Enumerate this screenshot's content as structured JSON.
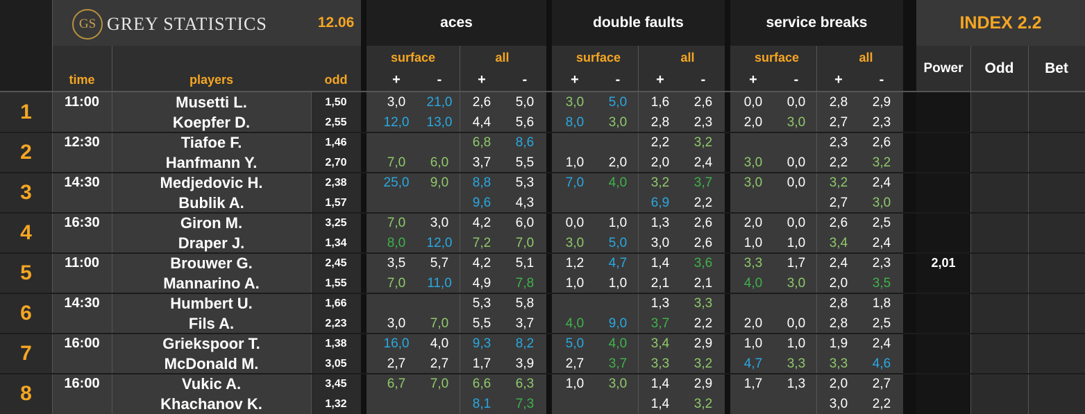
{
  "header": {
    "logo_mark": "GS",
    "brand": "GREY STATISTICS",
    "date": "12.06",
    "index": "INDEX 2.2",
    "groups": [
      "aces",
      "double faults",
      "service breaks"
    ],
    "sub_surface": "surface",
    "sub_all": "all",
    "plus": "+",
    "minus": "-",
    "col_time": "time",
    "col_players": "players",
    "col_odd": "odd",
    "col_power": "Power",
    "col_odd2": "Odd",
    "col_bet": "Bet"
  },
  "matches": [
    {
      "num": "1",
      "time": "11:00",
      "power": "",
      "players": [
        {
          "name": "Musetti L.",
          "odd": "1,50",
          "vals": [
            [
              "3,0",
              "w"
            ],
            [
              "21,0",
              "b"
            ],
            [
              "2,6",
              "w"
            ],
            [
              "5,0",
              "w"
            ],
            [
              "3,0",
              "g"
            ],
            [
              "5,0",
              "b"
            ],
            [
              "1,6",
              "w"
            ],
            [
              "2,6",
              "w"
            ],
            [
              "0,0",
              "w"
            ],
            [
              "0,0",
              "w"
            ],
            [
              "2,8",
              "w"
            ],
            [
              "2,9",
              "w"
            ]
          ]
        },
        {
          "name": "Koepfer D.",
          "odd": "2,55",
          "vals": [
            [
              "12,0",
              "b"
            ],
            [
              "13,0",
              "b"
            ],
            [
              "4,4",
              "w"
            ],
            [
              "5,6",
              "w"
            ],
            [
              "8,0",
              "b"
            ],
            [
              "3,0",
              "g"
            ],
            [
              "2,8",
              "w"
            ],
            [
              "2,3",
              "w"
            ],
            [
              "2,0",
              "w"
            ],
            [
              "3,0",
              "g"
            ],
            [
              "2,7",
              "w"
            ],
            [
              "2,3",
              "w"
            ]
          ]
        }
      ]
    },
    {
      "num": "2",
      "time": "12:30",
      "power": "",
      "players": [
        {
          "name": "Tiafoe F.",
          "odd": "1,46",
          "vals": [
            [
              "",
              ""
            ],
            [
              "",
              ""
            ],
            [
              "6,8",
              "g"
            ],
            [
              "8,6",
              "b"
            ],
            [
              "",
              ""
            ],
            [
              "",
              ""
            ],
            [
              "2,2",
              "w"
            ],
            [
              "3,2",
              "g"
            ],
            [
              "",
              ""
            ],
            [
              "",
              ""
            ],
            [
              "2,3",
              "w"
            ],
            [
              "2,6",
              "w"
            ]
          ]
        },
        {
          "name": "Hanfmann Y.",
          "odd": "2,70",
          "vals": [
            [
              "7,0",
              "g"
            ],
            [
              "6,0",
              "g"
            ],
            [
              "3,7",
              "w"
            ],
            [
              "5,5",
              "w"
            ],
            [
              "1,0",
              "w"
            ],
            [
              "2,0",
              "w"
            ],
            [
              "2,0",
              "w"
            ],
            [
              "2,4",
              "w"
            ],
            [
              "3,0",
              "g"
            ],
            [
              "0,0",
              "w"
            ],
            [
              "2,2",
              "w"
            ],
            [
              "3,2",
              "g"
            ]
          ]
        }
      ]
    },
    {
      "num": "3",
      "time": "14:30",
      "power": "",
      "players": [
        {
          "name": "Medjedovic H.",
          "odd": "2,38",
          "vals": [
            [
              "25,0",
              "b"
            ],
            [
              "9,0",
              "g"
            ],
            [
              "8,8",
              "b"
            ],
            [
              "5,3",
              "w"
            ],
            [
              "7,0",
              "b"
            ],
            [
              "4,0",
              "dg"
            ],
            [
              "3,2",
              "g"
            ],
            [
              "3,7",
              "dg"
            ],
            [
              "3,0",
              "g"
            ],
            [
              "0,0",
              "w"
            ],
            [
              "3,2",
              "g"
            ],
            [
              "2,4",
              "w"
            ]
          ]
        },
        {
          "name": "Bublik A.",
          "odd": "1,57",
          "vals": [
            [
              "",
              ""
            ],
            [
              "",
              ""
            ],
            [
              "9,6",
              "b"
            ],
            [
              "4,3",
              "w"
            ],
            [
              "",
              ""
            ],
            [
              "",
              ""
            ],
            [
              "6,9",
              "b"
            ],
            [
              "2,2",
              "w"
            ],
            [
              "",
              ""
            ],
            [
              "",
              ""
            ],
            [
              "2,7",
              "w"
            ],
            [
              "3,0",
              "g"
            ]
          ]
        }
      ]
    },
    {
      "num": "4",
      "time": "16:30",
      "power": "",
      "players": [
        {
          "name": "Giron M.",
          "odd": "3,25",
          "vals": [
            [
              "7,0",
              "g"
            ],
            [
              "3,0",
              "w"
            ],
            [
              "4,2",
              "w"
            ],
            [
              "6,0",
              "w"
            ],
            [
              "0,0",
              "w"
            ],
            [
              "1,0",
              "w"
            ],
            [
              "1,3",
              "w"
            ],
            [
              "2,6",
              "w"
            ],
            [
              "2,0",
              "w"
            ],
            [
              "0,0",
              "w"
            ],
            [
              "2,6",
              "w"
            ],
            [
              "2,5",
              "w"
            ]
          ]
        },
        {
          "name": "Draper J.",
          "odd": "1,34",
          "vals": [
            [
              "8,0",
              "dg"
            ],
            [
              "12,0",
              "b"
            ],
            [
              "7,2",
              "g"
            ],
            [
              "7,0",
              "g"
            ],
            [
              "3,0",
              "g"
            ],
            [
              "5,0",
              "b"
            ],
            [
              "3,0",
              "w"
            ],
            [
              "2,6",
              "w"
            ],
            [
              "1,0",
              "w"
            ],
            [
              "1,0",
              "w"
            ],
            [
              "3,4",
              "g"
            ],
            [
              "2,4",
              "w"
            ]
          ]
        }
      ]
    },
    {
      "num": "5",
      "time": "11:00",
      "power": "2,01",
      "players": [
        {
          "name": "Brouwer G.",
          "odd": "2,45",
          "vals": [
            [
              "3,5",
              "w"
            ],
            [
              "5,7",
              "w"
            ],
            [
              "4,2",
              "w"
            ],
            [
              "5,1",
              "w"
            ],
            [
              "1,2",
              "w"
            ],
            [
              "4,7",
              "b"
            ],
            [
              "1,4",
              "w"
            ],
            [
              "3,6",
              "dg"
            ],
            [
              "3,3",
              "g"
            ],
            [
              "1,7",
              "w"
            ],
            [
              "2,4",
              "w"
            ],
            [
              "2,3",
              "w"
            ]
          ]
        },
        {
          "name": "Mannarino A.",
          "odd": "1,55",
          "vals": [
            [
              "7,0",
              "g"
            ],
            [
              "11,0",
              "b"
            ],
            [
              "4,9",
              "w"
            ],
            [
              "7,8",
              "dg"
            ],
            [
              "1,0",
              "w"
            ],
            [
              "1,0",
              "w"
            ],
            [
              "2,1",
              "w"
            ],
            [
              "2,1",
              "w"
            ],
            [
              "4,0",
              "dg"
            ],
            [
              "3,0",
              "g"
            ],
            [
              "2,0",
              "w"
            ],
            [
              "3,5",
              "dg"
            ]
          ]
        }
      ]
    },
    {
      "num": "6",
      "time": "14:30",
      "power": "",
      "players": [
        {
          "name": "Humbert U.",
          "odd": "1,66",
          "vals": [
            [
              "",
              ""
            ],
            [
              "",
              ""
            ],
            [
              "5,3",
              "w"
            ],
            [
              "5,8",
              "w"
            ],
            [
              "",
              ""
            ],
            [
              "",
              ""
            ],
            [
              "1,3",
              "w"
            ],
            [
              "3,3",
              "g"
            ],
            [
              "",
              ""
            ],
            [
              "",
              ""
            ],
            [
              "2,8",
              "w"
            ],
            [
              "1,8",
              "w"
            ]
          ]
        },
        {
          "name": "Fils A.",
          "odd": "2,23",
          "vals": [
            [
              "3,0",
              "w"
            ],
            [
              "7,0",
              "g"
            ],
            [
              "5,5",
              "w"
            ],
            [
              "3,7",
              "w"
            ],
            [
              "4,0",
              "dg"
            ],
            [
              "9,0",
              "b"
            ],
            [
              "3,7",
              "dg"
            ],
            [
              "2,2",
              "w"
            ],
            [
              "2,0",
              "w"
            ],
            [
              "0,0",
              "w"
            ],
            [
              "2,8",
              "w"
            ],
            [
              "2,5",
              "w"
            ]
          ]
        }
      ]
    },
    {
      "num": "7",
      "time": "16:00",
      "power": "",
      "players": [
        {
          "name": "Griekspoor T.",
          "odd": "1,38",
          "vals": [
            [
              "16,0",
              "b"
            ],
            [
              "4,0",
              "w"
            ],
            [
              "9,3",
              "b"
            ],
            [
              "8,2",
              "b"
            ],
            [
              "5,0",
              "b"
            ],
            [
              "4,0",
              "dg"
            ],
            [
              "3,4",
              "g"
            ],
            [
              "2,9",
              "w"
            ],
            [
              "1,0",
              "w"
            ],
            [
              "1,0",
              "w"
            ],
            [
              "1,9",
              "w"
            ],
            [
              "2,4",
              "w"
            ]
          ]
        },
        {
          "name": "McDonald M.",
          "odd": "3,05",
          "vals": [
            [
              "2,7",
              "w"
            ],
            [
              "2,7",
              "w"
            ],
            [
              "1,7",
              "w"
            ],
            [
              "3,9",
              "w"
            ],
            [
              "2,7",
              "w"
            ],
            [
              "3,7",
              "dg"
            ],
            [
              "3,3",
              "g"
            ],
            [
              "3,2",
              "g"
            ],
            [
              "4,7",
              "b"
            ],
            [
              "3,3",
              "g"
            ],
            [
              "3,3",
              "g"
            ],
            [
              "4,6",
              "b"
            ]
          ]
        }
      ]
    },
    {
      "num": "8",
      "time": "16:00",
      "power": "",
      "players": [
        {
          "name": "Vukic A.",
          "odd": "3,45",
          "vals": [
            [
              "6,7",
              "g"
            ],
            [
              "7,0",
              "g"
            ],
            [
              "6,6",
              "g"
            ],
            [
              "6,3",
              "g"
            ],
            [
              "1,0",
              "w"
            ],
            [
              "3,0",
              "g"
            ],
            [
              "1,4",
              "w"
            ],
            [
              "2,9",
              "w"
            ],
            [
              "1,7",
              "w"
            ],
            [
              "1,3",
              "w"
            ],
            [
              "2,0",
              "w"
            ],
            [
              "2,7",
              "w"
            ]
          ]
        },
        {
          "name": "Khachanov K.",
          "odd": "1,32",
          "vals": [
            [
              "",
              ""
            ],
            [
              "",
              ""
            ],
            [
              "8,1",
              "b"
            ],
            [
              "7,3",
              "dg"
            ],
            [
              "",
              ""
            ],
            [
              "",
              ""
            ],
            [
              "1,4",
              "w"
            ],
            [
              "3,2",
              "g"
            ],
            [
              "",
              ""
            ],
            [
              "",
              ""
            ],
            [
              "3,0",
              "w"
            ],
            [
              "2,2",
              "w"
            ]
          ]
        }
      ]
    }
  ]
}
